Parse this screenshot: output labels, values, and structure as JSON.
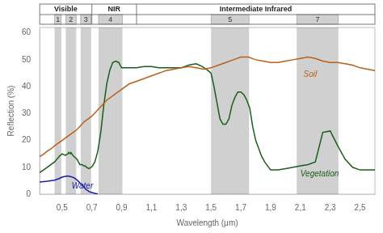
{
  "chart_data": {
    "type": "line",
    "xlabel": "Wavelength (μm)",
    "ylabel": "Reflection (%)",
    "xlim": [
      0.35,
      2.6
    ],
    "ylim": [
      0,
      62
    ],
    "xticks": [
      {
        "value": 0.5,
        "label": "0,5"
      },
      {
        "value": 0.7,
        "label": "0,7"
      },
      {
        "value": 0.9,
        "label": "0,9"
      },
      {
        "value": 1.1,
        "label": "1,1"
      },
      {
        "value": 1.3,
        "label": "1,3"
      },
      {
        "value": 1.5,
        "label": "1,5"
      },
      {
        "value": 1.7,
        "label": "1,7"
      },
      {
        "value": 1.9,
        "label": "1,9"
      },
      {
        "value": 2.1,
        "label": "2,1"
      },
      {
        "value": 2.3,
        "label": "2,3"
      },
      {
        "value": 2.5,
        "label": "2,5"
      }
    ],
    "yticks": [
      0,
      10,
      20,
      30,
      40,
      50,
      60
    ],
    "grid": false,
    "series": [
      {
        "color": "#b8601a",
        "x": [
          0.35,
          0.38,
          0.4,
          0.43,
          0.45,
          0.5,
          0.55,
          0.6,
          0.65,
          0.7,
          0.75,
          0.8,
          0.85,
          0.9,
          0.95,
          1.0,
          1.1,
          1.2,
          1.3,
          1.35,
          1.4,
          1.45,
          1.5,
          1.55,
          1.6,
          1.65,
          1.7,
          1.75,
          1.8,
          1.85,
          1.9,
          1.95,
          2.0,
          2.05,
          2.1,
          2.15,
          2.2,
          2.25,
          2.3,
          2.35,
          2.4,
          2.45,
          2.5,
          2.55,
          2.6
        ],
        "values": [
          14,
          15,
          16,
          17,
          18,
          20,
          22,
          24,
          27,
          29,
          32,
          35,
          37,
          39,
          41,
          42,
          44,
          46,
          47,
          47.5,
          47,
          46.5,
          47,
          48,
          49,
          50,
          51,
          51,
          50,
          49.5,
          49,
          49,
          49.5,
          50,
          50.5,
          51,
          50.5,
          49.5,
          49,
          49,
          48.5,
          48,
          47,
          46.5,
          46
        ]
      },
      {
        "color": "#1a5e1a",
        "x": [
          0.35,
          0.4,
          0.45,
          0.48,
          0.5,
          0.52,
          0.54,
          0.545,
          0.555,
          0.56,
          0.565,
          0.58,
          0.6,
          0.62,
          0.635,
          0.645,
          0.655,
          0.665,
          0.68,
          0.695,
          0.705,
          0.72,
          0.74,
          0.76,
          0.78,
          0.8,
          0.82,
          0.84,
          0.86,
          0.88,
          0.9,
          0.95,
          1.0,
          1.05,
          1.1,
          1.15,
          1.2,
          1.25,
          1.3,
          1.35,
          1.4,
          1.44,
          1.48,
          1.5,
          1.52,
          1.54,
          1.56,
          1.58,
          1.6,
          1.62,
          1.64,
          1.66,
          1.68,
          1.7,
          1.72,
          1.74,
          1.76,
          1.78,
          1.8,
          1.82,
          1.84,
          1.86,
          1.88,
          1.9,
          1.95,
          2.0,
          2.05,
          2.1,
          2.15,
          2.2,
          2.25,
          2.3,
          2.35,
          2.4,
          2.45,
          2.5,
          2.55,
          2.6
        ],
        "values": [
          8,
          10,
          12,
          14,
          15,
          14.5,
          15,
          15.5,
          15,
          15.5,
          15,
          14,
          13,
          11,
          11,
          10.5,
          10.5,
          10,
          9.5,
          10,
          10.5,
          12,
          16,
          23,
          33,
          41,
          46,
          49,
          49.5,
          49,
          47,
          47,
          47,
          47.5,
          47.5,
          47,
          47,
          47,
          47,
          48,
          48.5,
          47.5,
          46,
          45,
          40,
          34,
          28,
          26,
          26,
          28,
          33,
          36,
          38,
          38,
          37,
          35,
          32,
          25,
          20,
          17,
          14,
          12,
          10.5,
          9,
          9,
          9.5,
          10,
          10.5,
          11,
          12,
          23,
          23.5,
          18,
          13,
          10,
          9,
          9,
          9
        ]
      },
      {
        "color": "#1818b0",
        "x": [
          0.35,
          0.4,
          0.45,
          0.48,
          0.5,
          0.52,
          0.54,
          0.56,
          0.58,
          0.6,
          0.62,
          0.64,
          0.65,
          0.66,
          0.68,
          0.7,
          0.72,
          0.74
        ],
        "values": [
          4.5,
          4.8,
          5.2,
          5.8,
          6.3,
          6.6,
          6.8,
          6.5,
          6.1,
          5.3,
          4.2,
          3.2,
          2.5,
          1.8,
          1.0,
          0.6,
          0.3,
          0.1
        ]
      }
    ],
    "annotations": [
      {
        "text": "Soil",
        "x": 2.12,
        "y": 43.5,
        "color": "#b8601a"
      },
      {
        "text": "Vegetation",
        "x": 2.1,
        "y": 6.5,
        "color": "#1a5e1a"
      },
      {
        "text": "Water",
        "x": 0.565,
        "y": 2.2,
        "color": "#1818b0"
      }
    ],
    "regions": [
      {
        "range": [
          0.35,
          0.7
        ],
        "label": "Visible"
      },
      {
        "range": [
          0.7,
          1.0
        ],
        "label": "NIR"
      },
      {
        "range": [
          1.0,
          2.6
        ],
        "label": "Intermediate Infrared"
      }
    ],
    "bands": [
      {
        "range": [
          0.45,
          0.495
        ],
        "label": "1"
      },
      {
        "range": [
          0.525,
          0.595
        ],
        "label": "2"
      },
      {
        "range": [
          0.625,
          0.695
        ],
        "label": "3"
      },
      {
        "range": [
          0.745,
          0.905
        ],
        "label": "4"
      },
      {
        "range": [
          1.5,
          1.755
        ],
        "label": "5"
      },
      {
        "range": [
          2.075,
          2.355
        ],
        "label": "7"
      }
    ]
  }
}
